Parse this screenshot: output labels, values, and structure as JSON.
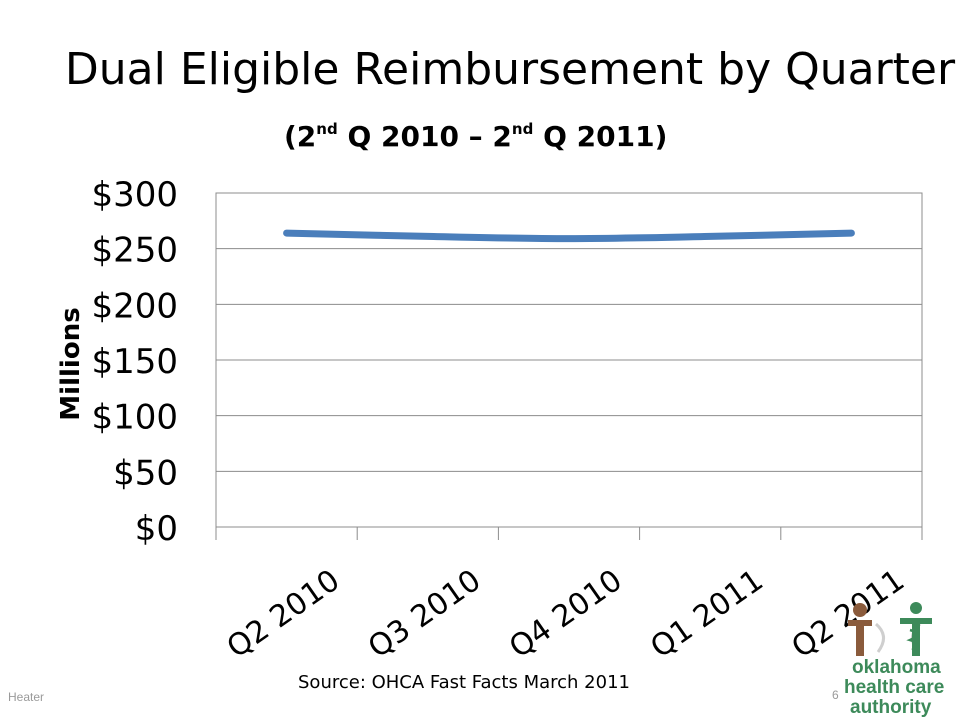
{
  "slide": {
    "source": "Source: OHCA Fast Facts March 2011",
    "footer_left": "Heater",
    "page_number": "6"
  },
  "logo": {
    "lines": [
      "oklahoma",
      "health care",
      "authority"
    ],
    "colors": {
      "brown": "#8a5b3c",
      "green": "#3d8a5a"
    }
  },
  "chart_data": {
    "type": "line",
    "title": "Dual Eligible Reimbursement by Quarter",
    "subtitle": "(2nd Q 2010 – 2nd Q 2011)",
    "subtitle_parts": [
      "(2",
      "nd",
      " Q 2010 – 2",
      "nd",
      " Q 2011)"
    ],
    "categories": [
      "Q2 2010",
      "Q3 2010",
      "Q4 2010",
      "Q1 2011",
      "Q2 2011"
    ],
    "series": [
      {
        "values": [
          264,
          261,
          259,
          261,
          264
        ],
        "color": "#4a7ebb"
      }
    ],
    "ylabel": "Millions",
    "ylim": [
      0,
      300
    ],
    "yticks": [
      0,
      50,
      100,
      150,
      200,
      250,
      300
    ],
    "ytick_labels": [
      "$0",
      "$50",
      "$100",
      "$150",
      "$200",
      "$250",
      "$300"
    ],
    "grid": true,
    "legend": "none"
  }
}
